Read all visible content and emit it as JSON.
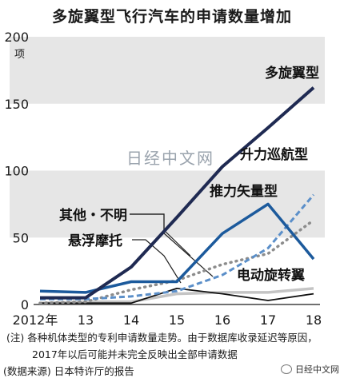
{
  "chart_data": {
    "type": "line",
    "title": "多旋翼型飞行汽车的申请数量增加",
    "unit": "项",
    "categories": [
      "2012年",
      "13",
      "14",
      "15",
      "16",
      "17",
      "18"
    ],
    "x": [
      2012,
      2013,
      2014,
      2015,
      2016,
      2017,
      2018
    ],
    "ylim": [
      0,
      200
    ],
    "yticks": [
      0,
      50,
      100,
      150,
      200
    ],
    "series": [
      {
        "name": "多旋翼型",
        "values": [
          5,
          5,
          28,
          65,
          103,
          132,
          162
        ],
        "color": "#1f2a52",
        "style": "solid",
        "width": 4
      },
      {
        "name": "升力巡航型",
        "values": [
          4,
          4,
          6,
          10,
          22,
          42,
          82
        ],
        "color": "#5b8fc9",
        "style": "dashed",
        "width": 3
      },
      {
        "name": "推力矢量型",
        "values": [
          10,
          9,
          17,
          17,
          53,
          75,
          34
        ],
        "color": "#1c5a9c",
        "style": "solid",
        "width": 3.5
      },
      {
        "name": "其他・不明",
        "values": [
          1,
          2,
          11,
          18,
          30,
          38,
          63
        ],
        "color": "#8c8c8c",
        "style": "dotted",
        "width": 3.5
      },
      {
        "name": "悬浮摩托",
        "values": [
          1,
          2,
          2,
          8,
          9,
          9,
          12
        ],
        "color": "#c4c4c4",
        "style": "solid",
        "width": 3.5
      },
      {
        "name": "电动旋转翼",
        "values": [
          1,
          1,
          1,
          12,
          8,
          3,
          8
        ],
        "color": "#111111",
        "style": "solid",
        "width": 1.8
      }
    ],
    "grid_bands": true
  },
  "watermark": "日经中文网",
  "notes": [
    "(注) 各种机体类型的专利申请数量走势。由于数据库收录延迟等原因，",
    "2017年以后可能并未完全反映出全部申请数据",
    "(数据来源) 日本特许厅的报告"
  ],
  "corner_brand": "日经中文网",
  "icons": {
    "corner": "wechat-icon"
  }
}
